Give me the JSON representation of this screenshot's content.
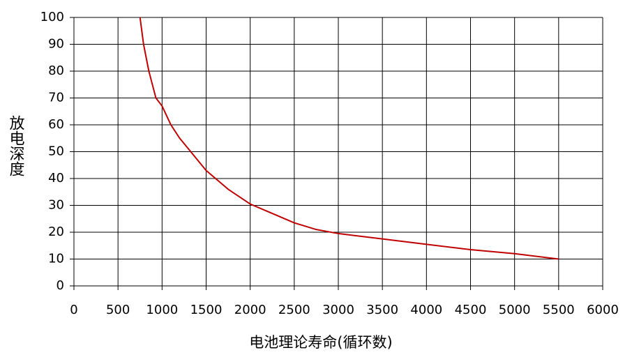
{
  "chart_data": {
    "type": "line",
    "x_label": "电池理论寿命(循环数)",
    "y_label": "放电深度",
    "x": [
      750,
      790,
      850,
      930,
      1000,
      1100,
      1200,
      1300,
      1500,
      1750,
      2000,
      2250,
      2500,
      2750,
      3000,
      3500,
      4000,
      4500,
      5000,
      5500
    ],
    "series": [
      {
        "color": "#c00000",
        "values": [
          100,
          90,
          80,
          70,
          67,
          60,
          55,
          51,
          43,
          36,
          30.5,
          27,
          23.5,
          21,
          19.5,
          17.5,
          15.5,
          13.5,
          12,
          10
        ]
      }
    ],
    "xlim": [
      0,
      6000
    ],
    "xticks": [
      0,
      500,
      1000,
      1500,
      2000,
      2500,
      3000,
      3500,
      4000,
      4500,
      5000,
      5500,
      6000
    ],
    "ylim": [
      0,
      100
    ],
    "yticks": [
      0,
      10,
      20,
      30,
      40,
      50,
      60,
      70,
      80,
      90,
      100
    ],
    "grid": true
  }
}
